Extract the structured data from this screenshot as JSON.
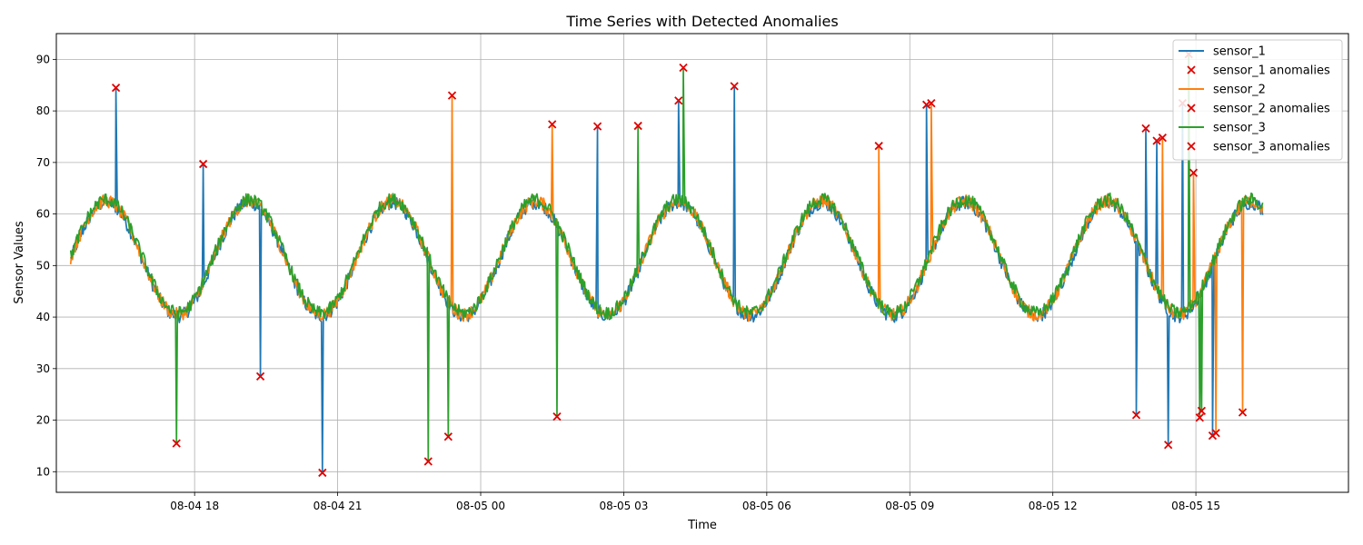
{
  "chart_data": {
    "type": "line",
    "title": "Time Series with Detected Anomalies",
    "xlabel": "Time",
    "ylabel": "Sensor Values",
    "ylim": [
      6,
      95
    ],
    "x_range_hours": [
      -2.9,
      24.2
    ],
    "x_start_label": "08-04 15:15",
    "x_end_label": "08-05 16:15",
    "x_ticks": [
      {
        "label": "08-04 18",
        "hour": 0
      },
      {
        "label": "08-04 21",
        "hour": 3
      },
      {
        "label": "08-05 00",
        "hour": 6
      },
      {
        "label": "08-05 03",
        "hour": 9
      },
      {
        "label": "08-05 06",
        "hour": 12
      },
      {
        "label": "08-05 09",
        "hour": 15
      },
      {
        "label": "08-05 12",
        "hour": 18
      },
      {
        "label": "08-05 15",
        "hour": 21
      }
    ],
    "y_ticks": [
      10,
      20,
      30,
      40,
      50,
      60,
      70,
      80,
      90
    ],
    "grid": true,
    "legend_position": "top-right",
    "baseline_pattern": "sinusoidal oscillation between ~40 and ~63, period ~3 hours",
    "series": [
      {
        "name": "sensor_1",
        "color": "#1f77b4",
        "anomaly_label": "sensor_1 anomalies",
        "anomalies": [
          {
            "hour": -1.65,
            "value": 84.5
          },
          {
            "hour": 0.18,
            "value": 69.7
          },
          {
            "hour": 1.38,
            "value": 28.5
          },
          {
            "hour": 2.68,
            "value": 9.8
          },
          {
            "hour": 8.45,
            "value": 77.0
          },
          {
            "hour": 10.15,
            "value": 82.0
          },
          {
            "hour": 11.32,
            "value": 84.8
          },
          {
            "hour": 15.35,
            "value": 81.2
          },
          {
            "hour": 19.75,
            "value": 21.0
          },
          {
            "hour": 19.95,
            "value": 76.6
          },
          {
            "hour": 20.18,
            "value": 74.2
          },
          {
            "hour": 20.42,
            "value": 15.2
          },
          {
            "hour": 20.72,
            "value": 81.5
          },
          {
            "hour": 21.35,
            "value": 17.0
          }
        ]
      },
      {
        "name": "sensor_2",
        "color": "#ff7f0e",
        "anomaly_label": "sensor_2 anomalies",
        "anomalies": [
          {
            "hour": 5.4,
            "value": 83.0
          },
          {
            "hour": 7.5,
            "value": 77.4
          },
          {
            "hour": 14.35,
            "value": 73.2
          },
          {
            "hour": 15.45,
            "value": 81.5
          },
          {
            "hour": 20.3,
            "value": 74.8
          },
          {
            "hour": 20.95,
            "value": 68.0
          },
          {
            "hour": 21.42,
            "value": 17.5
          },
          {
            "hour": 21.98,
            "value": 21.5
          }
        ]
      },
      {
        "name": "sensor_3",
        "color": "#2ca02c",
        "anomaly_label": "sensor_3 anomalies",
        "anomalies": [
          {
            "hour": -0.38,
            "value": 15.5
          },
          {
            "hour": 4.9,
            "value": 12.0
          },
          {
            "hour": 5.32,
            "value": 16.8
          },
          {
            "hour": 7.6,
            "value": 20.7
          },
          {
            "hour": 9.3,
            "value": 77.1
          },
          {
            "hour": 10.25,
            "value": 88.4
          },
          {
            "hour": 20.85,
            "value": 91.0
          },
          {
            "hour": 21.08,
            "value": 20.5
          },
          {
            "hour": 21.12,
            "value": 21.8
          }
        ]
      }
    ]
  }
}
